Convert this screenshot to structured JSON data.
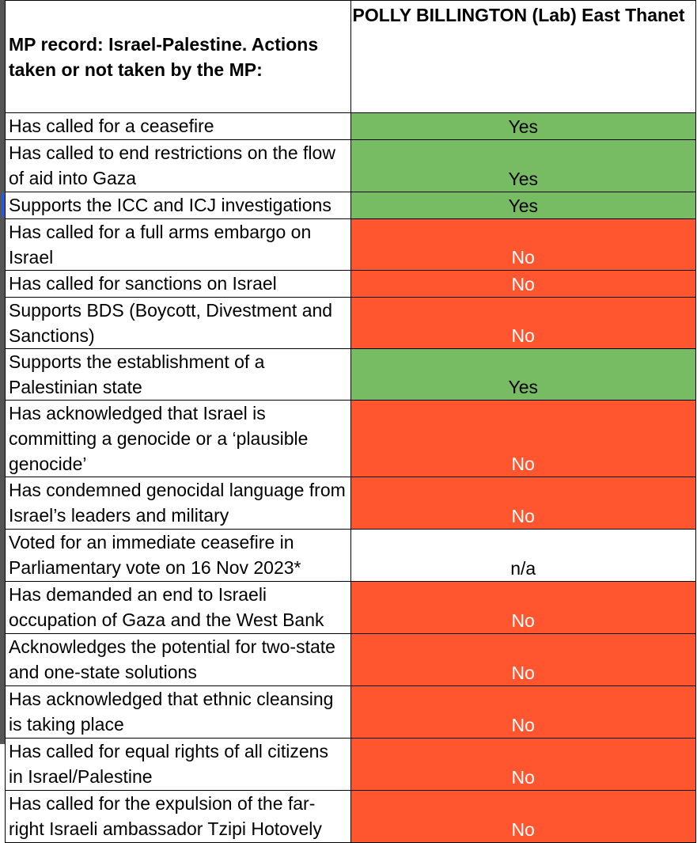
{
  "header": {
    "title": "MP record: Israel-Palestine. Actions taken or not taken by the MP:",
    "column": "POLLY BILLINGTON (Lab) East Thanet"
  },
  "rows": [
    {
      "action": "Has called for a ceasefire",
      "answer": "Yes",
      "color": "#77bb63"
    },
    {
      "action": "Has called to end restrictions on the flow of aid into Gaza",
      "answer": "Yes",
      "color": "#77bb63"
    },
    {
      "action": "Supports the ICC and ICJ investigations",
      "answer": "Yes",
      "color": "#77bb63"
    },
    {
      "action": "Has called for a full arms embargo on Israel",
      "answer": "No",
      "color": "#ff5630"
    },
    {
      "action": "Has called for sanctions on Israel",
      "answer": "No",
      "color": "#ff5630"
    },
    {
      "action": "Supports BDS (Boycott, Divestment and Sanctions)",
      "answer": "No",
      "color": "#ff5630"
    },
    {
      "action": "Supports the establishment of a Palestinian state",
      "answer": "Yes",
      "color": "#77bb63"
    },
    {
      "action": "Has acknowledged that Israel is committing a genocide or a ‘plausible genocide’",
      "answer": "No",
      "color": "#ff5630"
    },
    {
      "action": "Has condemned genocidal language from Israel’s leaders and military",
      "answer": "No",
      "color": "#ff5630"
    },
    {
      "action": "Voted for an immediate ceasefire in Parliamentary vote on 16 Nov 2023*",
      "answer": "n/a",
      "color": "#ffffff"
    },
    {
      "action": "Has demanded an end to Israeli occupation of Gaza and the West Bank",
      "answer": "No",
      "color": "#ff5630"
    },
    {
      "action": "Acknowledges the potential for two-state and one-state solutions",
      "answer": "No",
      "color": "#ff5630"
    },
    {
      "action": "Has acknowledged that ethnic cleansing is taking place",
      "answer": "No",
      "color": "#ff5630"
    },
    {
      "action": "Has called for equal rights of all citizens in Israel/Palestine",
      "answer": "No",
      "color": "#ff5630"
    },
    {
      "action": "Has called for the expulsion of the far-right Israeli ambassador Tzipi Hotovely",
      "answer": "No",
      "color": "#ff5630"
    }
  ]
}
